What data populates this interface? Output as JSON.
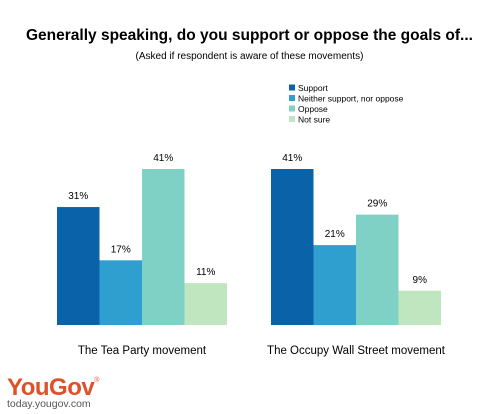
{
  "header": {
    "title": "Generally speaking, do you support or oppose the goals of...",
    "subtitle": "(Asked if respondent is aware of these movements)"
  },
  "chart_data": {
    "type": "bar",
    "categories": [
      "The Tea Party movement",
      "The Occupy Wall Street movement"
    ],
    "series": [
      {
        "name": "Support",
        "color": "#0a63a8",
        "values": [
          31,
          41
        ]
      },
      {
        "name": "Neither support, nor oppose",
        "color": "#2e9fcf",
        "values": [
          17,
          21
        ]
      },
      {
        "name": "Oppose",
        "color": "#7fd1c6",
        "values": [
          41,
          29
        ]
      },
      {
        "name": "Not sure",
        "color": "#bfe6bf",
        "values": [
          11,
          9
        ]
      }
    ],
    "value_suffix": "%",
    "ylim": [
      0,
      41
    ],
    "legend": "top-right",
    "grid": false
  },
  "brand": {
    "logo": "YouGov",
    "logo_mark": "®",
    "url": "today.yougov.com"
  }
}
